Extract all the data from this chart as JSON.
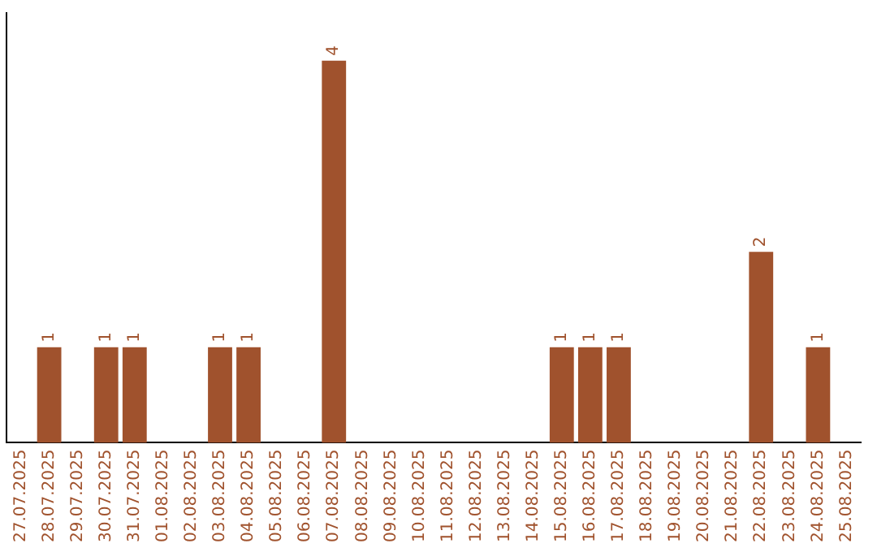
{
  "chart_data": {
    "type": "bar",
    "categories": [
      "27.07.2025",
      "28.07.2025",
      "29.07.2025",
      "30.07.2025",
      "31.07.2025",
      "01.08.2025",
      "02.08.2025",
      "03.08.2025",
      "04.08.2025",
      "05.08.2025",
      "06.08.2025",
      "07.08.2025",
      "08.08.2025",
      "09.08.2025",
      "10.08.2025",
      "11.08.2025",
      "12.08.2025",
      "13.08.2025",
      "14.08.2025",
      "15.08.2025",
      "16.08.2025",
      "17.08.2025",
      "18.08.2025",
      "19.08.2025",
      "20.08.2025",
      "21.08.2025",
      "22.08.2025",
      "23.08.2025",
      "24.08.2025",
      "25.08.2025"
    ],
    "values": [
      0,
      1,
      0,
      1,
      1,
      0,
      0,
      1,
      1,
      0,
      0,
      4,
      0,
      0,
      0,
      0,
      0,
      0,
      0,
      1,
      1,
      1,
      0,
      0,
      0,
      0,
      2,
      0,
      1,
      0
    ],
    "value_labels": [
      null,
      "1",
      null,
      "1",
      "1",
      null,
      null,
      "1",
      "1",
      null,
      null,
      "4",
      null,
      null,
      null,
      null,
      null,
      null,
      null,
      "1",
      "1",
      "1",
      null,
      null,
      null,
      null,
      "2",
      null,
      "1",
      null
    ],
    "color": "#a0522d",
    "tick_labels": "x",
    "grid": false,
    "legend": false
  }
}
